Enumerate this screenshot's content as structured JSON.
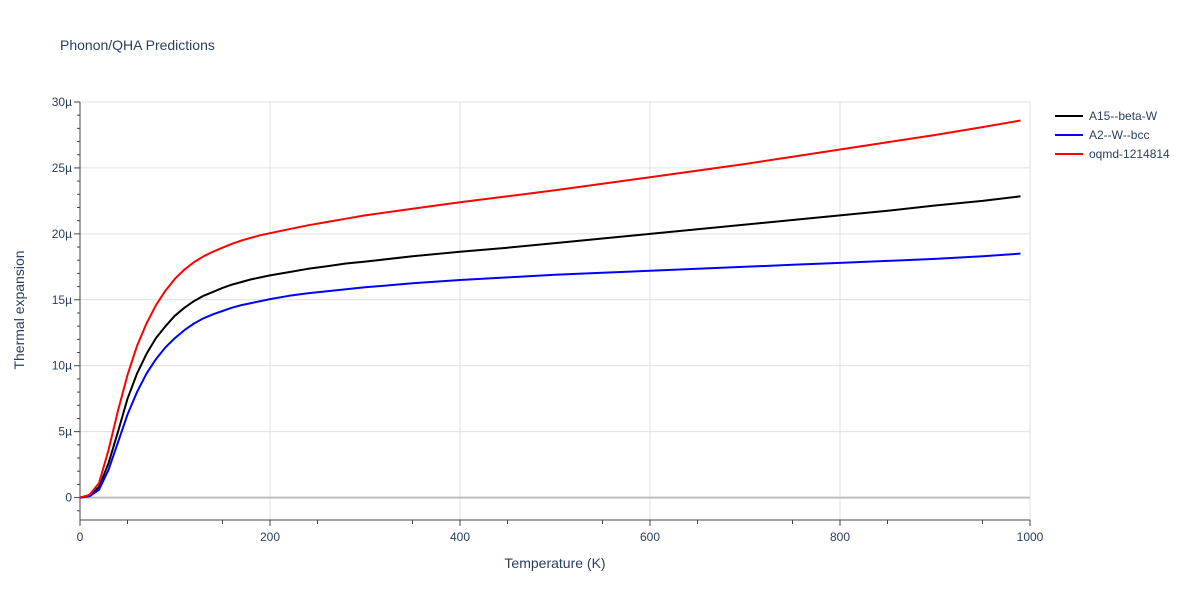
{
  "chart_data": {
    "type": "line",
    "title": "Phonon/QHA Predictions",
    "xlabel": "Temperature (K)",
    "ylabel": "Thermal expansion",
    "xlim": [
      0,
      1000
    ],
    "ylim": [
      -1.7,
      30
    ],
    "x_ticks": [
      0,
      200,
      400,
      600,
      800,
      1000
    ],
    "x_tick_labels": [
      "0",
      "200",
      "400",
      "600",
      "800",
      "1000"
    ],
    "y_ticks": [
      0,
      5,
      10,
      15,
      20,
      25,
      30
    ],
    "y_tick_labels": [
      "0",
      "5µ",
      "10µ",
      "15µ",
      "20µ",
      "25µ",
      "30µ"
    ],
    "y_unit_note": "values in units of 1e-6",
    "grid": true,
    "legend": "right",
    "series": [
      {
        "name": "A15--beta-W",
        "color": "#000000",
        "x": [
          0,
          10,
          20,
          30,
          40,
          50,
          60,
          70,
          80,
          90,
          100,
          110,
          120,
          130,
          140,
          150,
          160,
          170,
          180,
          190,
          200,
          220,
          240,
          260,
          280,
          300,
          350,
          400,
          450,
          500,
          550,
          600,
          650,
          700,
          750,
          800,
          850,
          900,
          950,
          990
        ],
        "y": [
          0,
          0.15,
          0.8,
          2.6,
          5.0,
          7.5,
          9.4,
          10.9,
          12.1,
          13.0,
          13.8,
          14.4,
          14.9,
          15.3,
          15.6,
          15.9,
          16.15,
          16.35,
          16.55,
          16.7,
          16.85,
          17.1,
          17.35,
          17.55,
          17.75,
          17.9,
          18.3,
          18.65,
          18.95,
          19.3,
          19.65,
          20.0,
          20.35,
          20.7,
          21.05,
          21.4,
          21.75,
          22.15,
          22.5,
          22.85
        ]
      },
      {
        "name": "A2--W--bcc",
        "color": "#0000ff",
        "x": [
          0,
          10,
          20,
          30,
          40,
          50,
          60,
          70,
          80,
          90,
          100,
          110,
          120,
          130,
          140,
          150,
          160,
          170,
          180,
          190,
          200,
          220,
          240,
          260,
          280,
          300,
          350,
          400,
          450,
          500,
          550,
          600,
          650,
          700,
          750,
          800,
          850,
          900,
          950,
          990
        ],
        "y": [
          0,
          0.1,
          0.6,
          2.1,
          4.2,
          6.3,
          8.0,
          9.4,
          10.5,
          11.4,
          12.1,
          12.7,
          13.2,
          13.6,
          13.9,
          14.15,
          14.4,
          14.6,
          14.75,
          14.9,
          15.05,
          15.3,
          15.5,
          15.65,
          15.8,
          15.95,
          16.25,
          16.5,
          16.7,
          16.9,
          17.05,
          17.2,
          17.35,
          17.5,
          17.65,
          17.8,
          17.95,
          18.1,
          18.3,
          18.5
        ]
      },
      {
        "name": "oqmd-1214814",
        "color": "#ff0000",
        "x": [
          0,
          10,
          20,
          30,
          40,
          50,
          60,
          70,
          80,
          90,
          100,
          110,
          120,
          130,
          140,
          150,
          160,
          170,
          180,
          190,
          200,
          220,
          240,
          260,
          280,
          300,
          350,
          400,
          450,
          500,
          550,
          600,
          650,
          700,
          750,
          800,
          850,
          900,
          950,
          990
        ],
        "y": [
          0,
          0.2,
          1.1,
          3.6,
          6.6,
          9.3,
          11.5,
          13.2,
          14.6,
          15.7,
          16.6,
          17.3,
          17.85,
          18.3,
          18.65,
          18.95,
          19.25,
          19.5,
          19.7,
          19.9,
          20.05,
          20.35,
          20.65,
          20.9,
          21.15,
          21.4,
          21.9,
          22.4,
          22.85,
          23.3,
          23.8,
          24.3,
          24.8,
          25.3,
          25.85,
          26.4,
          26.95,
          27.5,
          28.1,
          28.6
        ]
      }
    ]
  }
}
